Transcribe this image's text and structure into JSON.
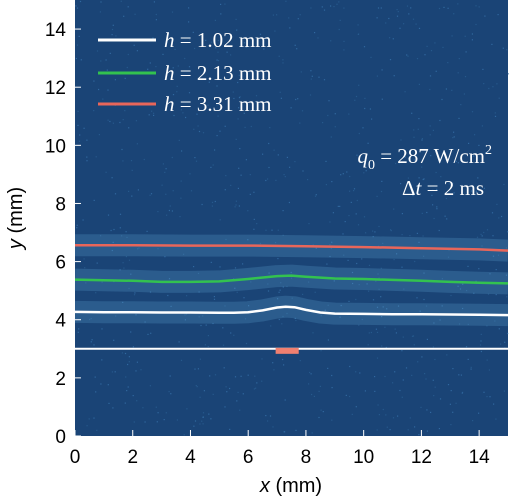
{
  "chart_data": {
    "type": "line",
    "xlabel": {
      "symbol": "x",
      "unit": "(mm)"
    },
    "ylabel": {
      "symbol": "y",
      "unit": "(mm)"
    },
    "xlim": [
      0,
      15
    ],
    "ylim": [
      0,
      15
    ],
    "xticks": [
      "0",
      "2",
      "4",
      "6",
      "8",
      "10",
      "12",
      "14"
    ],
    "yticks": [
      "0",
      "2",
      "4",
      "6",
      "8",
      "10",
      "12",
      "14"
    ],
    "background_color": "#1a4476",
    "series": [
      {
        "name": "h = 1.02 mm",
        "legend": {
          "symbol": "h",
          "rest": " = 1.02 mm"
        },
        "color": "#ffffff",
        "x": [
          0,
          1,
          2,
          3,
          4,
          5,
          5.5,
          6,
          6.5,
          7,
          7.3,
          7.6,
          8,
          8.5,
          9,
          10,
          11,
          12,
          13,
          14,
          15
        ],
        "y": [
          4.27,
          4.26,
          4.26,
          4.25,
          4.25,
          4.24,
          4.24,
          4.26,
          4.32,
          4.42,
          4.45,
          4.43,
          4.34,
          4.25,
          4.21,
          4.2,
          4.19,
          4.19,
          4.18,
          4.17,
          4.16
        ]
      },
      {
        "name": "h = 2.13 mm",
        "legend": {
          "symbol": "h",
          "rest": " = 2.13 mm"
        },
        "color": "#33c24f",
        "x": [
          0,
          1,
          2,
          3,
          4,
          5,
          6,
          7,
          7.5,
          8,
          9,
          10,
          11,
          12,
          13,
          14,
          15
        ],
        "y": [
          5.38,
          5.36,
          5.34,
          5.3,
          5.3,
          5.32,
          5.4,
          5.5,
          5.52,
          5.48,
          5.42,
          5.4,
          5.37,
          5.34,
          5.3,
          5.27,
          5.25
        ]
      },
      {
        "name": "h = 3.31 mm",
        "legend": {
          "symbol": "h",
          "rest": " = 3.31 mm"
        },
        "color": "#e8665a",
        "x": [
          0,
          2,
          4,
          6,
          8,
          10,
          12,
          14,
          15
        ],
        "y": [
          6.56,
          6.56,
          6.55,
          6.55,
          6.53,
          6.5,
          6.46,
          6.42,
          6.38
        ]
      }
    ],
    "reference_line": {
      "y": 3.0,
      "color": "#ffffff"
    },
    "heater_marker": {
      "x_start": 6.95,
      "x_end": 7.75,
      "y": 2.93,
      "color": "#f08070"
    },
    "annotations": {
      "q_symbol": "q",
      "q_subscript": "0",
      "q_value": " = 287 W/cm",
      "q_superscript": "2",
      "dt_symbol": "Δ",
      "dt_var": "t",
      "dt_value": " = 2 ms"
    }
  }
}
